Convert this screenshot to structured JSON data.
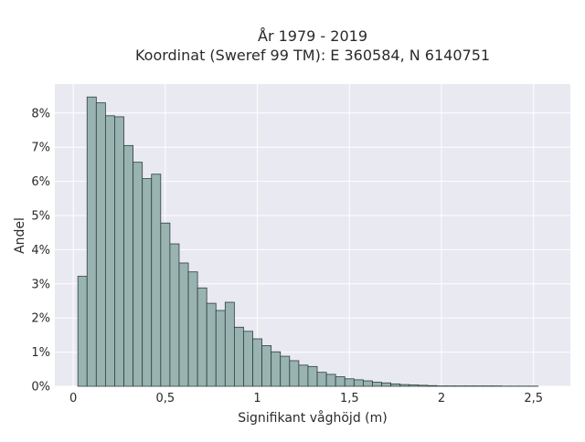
{
  "chart_data": {
    "type": "bar",
    "title_line1": "År 1979 - 2019",
    "title_line2": "Koordinat (Sweref 99 TM): E 360584, N 6140751",
    "xlabel": "Signifikant våghöjd (m)",
    "ylabel": "Andel",
    "bin_width": 0.05,
    "bin_start": 0.025,
    "xlim": [
      -0.1,
      2.7
    ],
    "ylim": [
      0,
      0.0885
    ],
    "x_ticks": [
      0,
      0.5,
      1,
      1.5,
      2,
      2.5
    ],
    "x_tick_labels": [
      "0",
      "0,5",
      "1",
      "1,5",
      "2",
      "2,5"
    ],
    "y_ticks": [
      0,
      0.01,
      0.02,
      0.03,
      0.04,
      0.05,
      0.06,
      0.07,
      0.08
    ],
    "y_tick_labels": [
      "0%",
      "1%",
      "2%",
      "3%",
      "4%",
      "5%",
      "6%",
      "7%",
      "8%"
    ],
    "values": [
      0.0322,
      0.0847,
      0.083,
      0.0792,
      0.0789,
      0.0705,
      0.0656,
      0.0608,
      0.0621,
      0.0478,
      0.0417,
      0.0361,
      0.0335,
      0.0288,
      0.0243,
      0.0222,
      0.0246,
      0.0173,
      0.0161,
      0.0139,
      0.0119,
      0.0101,
      0.0088,
      0.0075,
      0.0062,
      0.0058,
      0.0041,
      0.0035,
      0.0028,
      0.0022,
      0.0019,
      0.0016,
      0.0012,
      0.001,
      0.0007,
      0.0005,
      0.0004,
      0.0003,
      0.0002,
      0.0001,
      0.0001,
      0.0001,
      0.0001,
      0.0001,
      0.0001,
      0.0001,
      5e-05,
      5e-05,
      5e-05,
      5e-05
    ],
    "colors": {
      "plot_bg": "#e9e9f1",
      "bar_fill": "#98b3b0",
      "bar_edge": "#2f3f3d",
      "grid": "#ffffff"
    },
    "grid": true,
    "legend": "none"
  }
}
